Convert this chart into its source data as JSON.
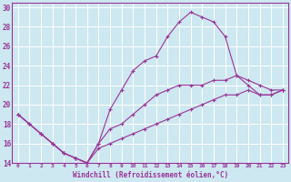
{
  "xlabel": "Windchill (Refroidissement éolien,°C)",
  "background_color": "#cde8f0",
  "line_color": "#993399",
  "grid_color": "#aaccdd",
  "xlim": [
    -0.5,
    23.5
  ],
  "ylim": [
    14,
    30.5
  ],
  "yticks": [
    14,
    16,
    18,
    20,
    22,
    24,
    26,
    28,
    30
  ],
  "xticks": [
    0,
    1,
    2,
    3,
    4,
    5,
    6,
    7,
    8,
    9,
    10,
    11,
    12,
    13,
    14,
    15,
    16,
    17,
    18,
    19,
    20,
    21,
    22,
    23
  ],
  "series": [
    {
      "x": [
        0,
        1,
        2,
        3,
        4,
        5,
        6,
        7,
        8,
        9,
        10,
        11,
        12,
        13,
        14,
        15,
        16,
        17,
        18,
        19,
        20,
        21,
        22,
        23
      ],
      "y": [
        19,
        18,
        17,
        16,
        15,
        14.5,
        14,
        16,
        19.5,
        21.5,
        23.5,
        24.5,
        25,
        27,
        28.5,
        29.5,
        29,
        28.5,
        27,
        23,
        22,
        21,
        21,
        21.5
      ]
    },
    {
      "x": [
        0,
        1,
        2,
        3,
        4,
        5,
        6,
        7,
        8,
        9,
        10,
        11,
        12,
        13,
        14,
        15,
        16,
        17,
        18,
        19,
        20,
        21,
        22,
        23
      ],
      "y": [
        19,
        18,
        17,
        16,
        15,
        14.5,
        14,
        16,
        17.5,
        18,
        19,
        20,
        21,
        21.5,
        22,
        22,
        22,
        22.5,
        22.5,
        23,
        22.5,
        22,
        21.5,
        21.5
      ]
    },
    {
      "x": [
        0,
        1,
        2,
        3,
        4,
        5,
        6,
        7,
        8,
        9,
        10,
        11,
        12,
        13,
        14,
        15,
        16,
        17,
        18,
        19,
        20,
        21,
        22,
        23
      ],
      "y": [
        19,
        18,
        17,
        16,
        15,
        14.5,
        14,
        15.5,
        16,
        16.5,
        17,
        17.5,
        18,
        18.5,
        19,
        19.5,
        20,
        20.5,
        21,
        21,
        21.5,
        21,
        21,
        21.5
      ]
    }
  ]
}
